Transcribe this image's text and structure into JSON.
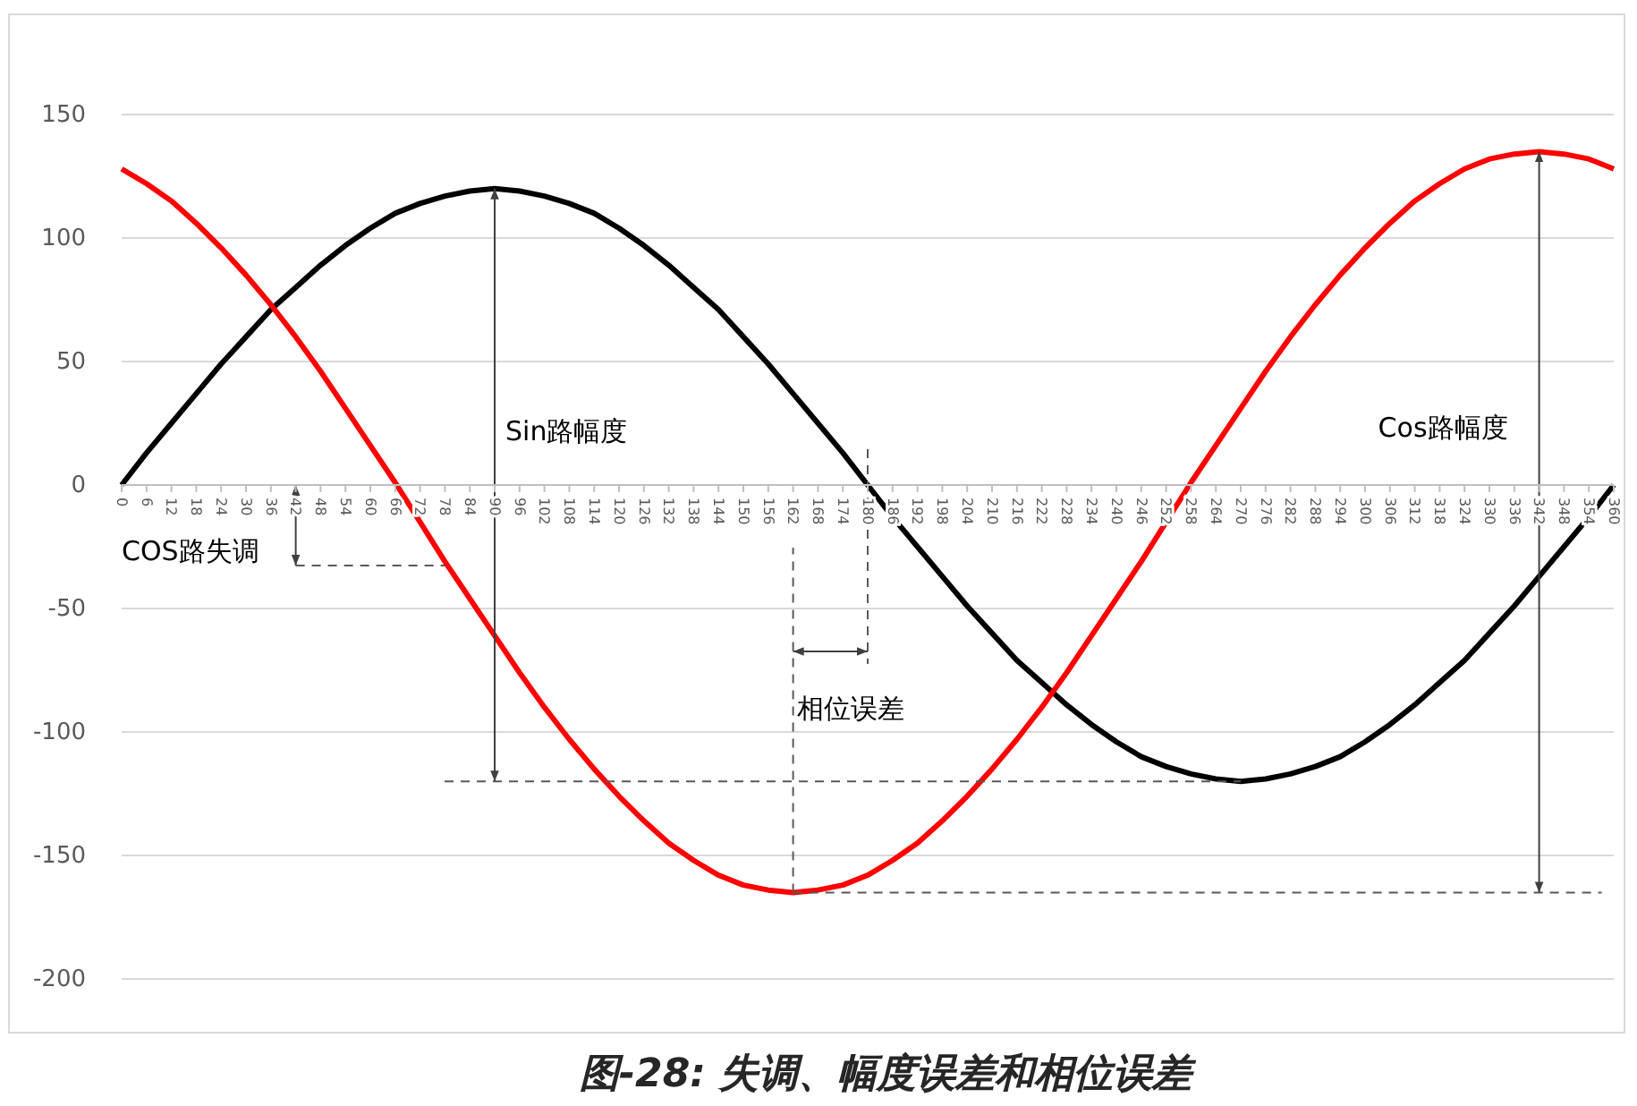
{
  "chart_data": {
    "type": "line",
    "title": "图-28: 失调、幅度误差和相位误差",
    "categories": [
      "0",
      "6",
      "12",
      "18",
      "24",
      "30",
      "36",
      "42",
      "48",
      "54",
      "60",
      "66",
      "72",
      "78",
      "84",
      "90",
      "96",
      "102",
      "108",
      "114",
      "120",
      "126",
      "132",
      "138",
      "144",
      "150",
      "156",
      "162",
      "168",
      "174",
      "180",
      "186",
      "192",
      "198",
      "204",
      "210",
      "216",
      "222",
      "228",
      "234",
      "240",
      "246",
      "252",
      "258",
      "264",
      "270",
      "276",
      "282",
      "288",
      "294",
      "300",
      "306",
      "312",
      "318",
      "324",
      "330",
      "336",
      "342",
      "348",
      "354",
      "360"
    ],
    "series": [
      {
        "color": "#000000",
        "values": [
          0,
          13,
          25,
          37,
          49,
          60,
          71,
          80,
          89,
          97,
          104,
          110,
          114,
          117,
          119,
          120,
          119,
          117,
          114,
          110,
          104,
          97,
          89,
          80,
          71,
          60,
          49,
          37,
          25,
          13,
          0,
          -13,
          -25,
          -37,
          -49,
          -60,
          -71,
          -80,
          -89,
          -97,
          -104,
          -110,
          -114,
          -117,
          -119,
          -120,
          -119,
          -117,
          -114,
          -110,
          -104,
          -97,
          -89,
          -80,
          -71,
          -60,
          -49,
          -37,
          -25,
          -13,
          0
        ]
      },
      {
        "color": "#ff0000",
        "values": [
          128,
          122,
          115,
          106,
          96,
          85,
          73,
          60,
          46,
          31,
          16,
          1,
          -15,
          -31,
          -46,
          -61,
          -76,
          -90,
          -103,
          -115,
          -126,
          -136,
          -145,
          -152,
          -158,
          -162,
          -164,
          -165,
          -164,
          -162,
          -158,
          -152,
          -145,
          -136,
          -126,
          -115,
          -103,
          -90,
          -76,
          -61,
          -46,
          -31,
          -15,
          1,
          16,
          31,
          46,
          60,
          73,
          85,
          96,
          106,
          115,
          122,
          128,
          132,
          134,
          135,
          134,
          132,
          128
        ]
      }
    ],
    "ref_lines": [
      {
        "axis": "y",
        "value": -120,
        "line_style": "dashed",
        "color": "#595959"
      },
      {
        "axis": "y",
        "value": -165,
        "line_style": "dashed",
        "color": "#595959"
      },
      {
        "axis": "x",
        "value": "90",
        "line_style": "solid",
        "color": "#404040"
      },
      {
        "axis": "x",
        "value": "342",
        "line_style": "solid",
        "color": "#404040"
      }
    ],
    "ylim": [
      -200,
      150
    ],
    "yticks": [
      -200,
      -150,
      -100,
      -50,
      0,
      50,
      100,
      150
    ],
    "grid": "y",
    "marker": "none",
    "line_style": "solid",
    "annotations": [
      "Sin路幅度",
      "Cos路幅度",
      "COS路失调",
      "相位误差"
    ]
  }
}
